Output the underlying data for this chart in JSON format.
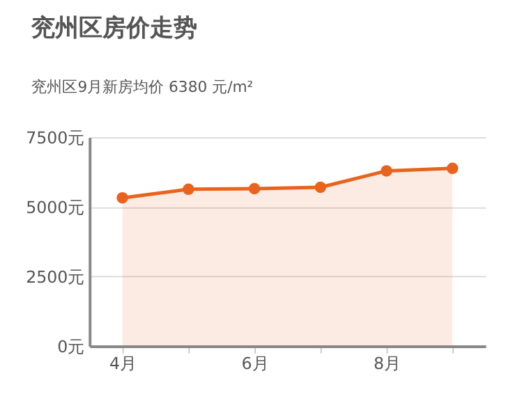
{
  "chart_data": {
    "type": "area",
    "title": "兖州区房价走势",
    "subtitle": "兖州区9月新房均价 6380 元/m²",
    "categories": [
      "4月",
      null,
      "6月",
      null,
      "8月",
      null
    ],
    "series": [
      {
        "color": "#e8641e",
        "values": [
          5320,
          5630,
          5650,
          5700,
          6290,
          6380
        ]
      }
    ],
    "ylim": [
      0,
      7500
    ],
    "yticks": [
      {
        "value": 0,
        "label": "0元"
      },
      {
        "value": 2500,
        "label": "2500元"
      },
      {
        "value": 5000,
        "label": "5000元"
      },
      {
        "value": 7500,
        "label": "7500元"
      }
    ],
    "grid": "y",
    "marker": "circle"
  }
}
